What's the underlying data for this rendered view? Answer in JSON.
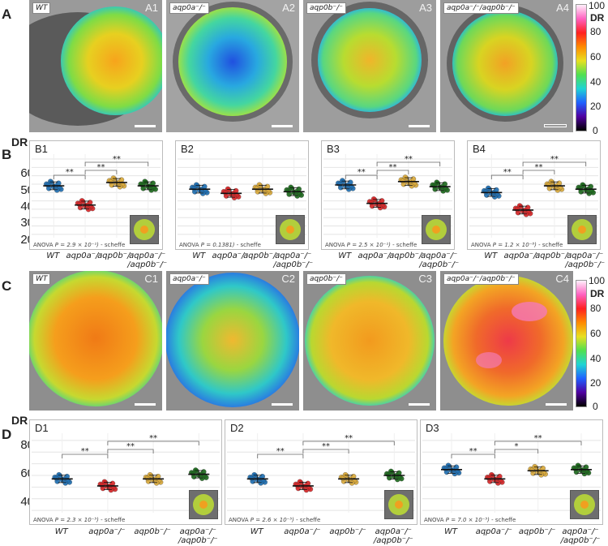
{
  "sections": {
    "A": "A",
    "B": "B",
    "C": "C",
    "D": "D"
  },
  "dr_label": "DR",
  "colorbar": {
    "ticks": [
      "100",
      "80",
      "60",
      "40",
      "20",
      "0"
    ],
    "title": "DR"
  },
  "panels_A": [
    {
      "id": "A1",
      "tag": "WT"
    },
    {
      "id": "A2",
      "tag": "aqp0a⁻/⁻"
    },
    {
      "id": "A3",
      "tag": "aqp0b⁻/⁻"
    },
    {
      "id": "A4",
      "tag": "aqp0a⁻/⁻/aqp0b⁻/⁻"
    }
  ],
  "panels_C": [
    {
      "id": "C1",
      "tag": "WT"
    },
    {
      "id": "C2",
      "tag": "aqp0a⁻/⁻"
    },
    {
      "id": "C3",
      "tag": "aqp0b⁻/⁻"
    },
    {
      "id": "C4",
      "tag": "aqp0a⁻/⁻/aqp0b⁻/⁻"
    }
  ],
  "x_groups": [
    "WT",
    "aqp0a⁻/⁻",
    "aqp0b⁻/⁻",
    "aqp0a⁻/⁻",
    "/aqp0b⁻/⁻"
  ],
  "B_yticks": [
    "60",
    "50",
    "40",
    "30",
    "20"
  ],
  "D_yticks": [
    "80",
    "60",
    "40"
  ],
  "chart_data": [
    {
      "id": "B1",
      "type": "scatter",
      "groups": [
        "WT",
        "aqp0a-/-",
        "aqp0b-/-",
        "aqp0a-/-/aqp0b-/-"
      ],
      "means": [
        49,
        37.5,
        51,
        49
      ],
      "sig": [
        "**",
        "**",
        "**"
      ],
      "anova_label": "ANOVA",
      "p_value": "P = 2.9 × 10⁻¹)",
      "method": "- scheffe",
      "ylim": [
        18,
        65
      ]
    },
    {
      "id": "B2",
      "type": "scatter",
      "groups": [
        "WT",
        "aqp0a-/-",
        "aqp0b-/-",
        "aqp0a-/-/aqp0b-/-"
      ],
      "means": [
        47,
        44.5,
        47,
        45.5
      ],
      "sig": [],
      "anova_label": "ANOVA",
      "p_value": "P = 0.1381)",
      "method": "- scheffe",
      "ylim": [
        18,
        65
      ]
    },
    {
      "id": "B3",
      "type": "scatter",
      "groups": [
        "WT",
        "aqp0a-/-",
        "aqp0b-/-",
        "aqp0a-/-/aqp0b-/-"
      ],
      "means": [
        49.5,
        38.5,
        51.5,
        48.5
      ],
      "sig": [
        "**",
        "**",
        "**"
      ],
      "anova_label": "ANOVA",
      "p_value": "P = 2.5 × 10⁻¹)",
      "method": "- scheffe",
      "ylim": [
        18,
        65
      ]
    },
    {
      "id": "B4",
      "type": "scatter",
      "groups": [
        "WT",
        "aqp0a-/-",
        "aqp0b-/-",
        "aqp0a-/-/aqp0b-/-"
      ],
      "means": [
        45,
        34.5,
        49,
        47
      ],
      "sig": [
        "**",
        "**",
        "**"
      ],
      "anova_label": "ANOVA",
      "p_value": "P = 1.2 × 10⁻⁸)",
      "method": "- scheffe",
      "ylim": [
        18,
        65
      ]
    },
    {
      "id": "D1",
      "type": "scatter",
      "groups": [
        "WT",
        "aqp0a-/-",
        "aqp0b-/-",
        "aqp0a-/-/aqp0b-/-"
      ],
      "means": [
        57,
        51,
        57,
        61
      ],
      "sig": [
        "**",
        "**",
        "**"
      ],
      "anova_label": "ANOVA",
      "p_value": "P = 2.3 × 10⁻⁵)",
      "method": "- scheffe",
      "ylim": [
        28,
        92
      ]
    },
    {
      "id": "D2",
      "type": "scatter",
      "groups": [
        "WT",
        "aqp0a-/-",
        "aqp0b-/-",
        "aqp0a-/-/aqp0b-/-"
      ],
      "means": [
        57,
        51,
        57,
        60
      ],
      "sig": [
        "**",
        "**",
        "**"
      ],
      "anova_label": "ANOVA",
      "p_value": "P = 2.6 × 10⁻⁵)",
      "method": "- scheffe",
      "ylim": [
        28,
        92
      ]
    },
    {
      "id": "D3",
      "type": "scatter",
      "groups": [
        "WT",
        "aqp0a-/-",
        "aqp0b-/-",
        "aqp0a-/-/aqp0b-/-"
      ],
      "means": [
        65,
        57,
        64,
        65
      ],
      "sig": [
        "**",
        "*",
        "**"
      ],
      "anova_label": "ANOVA",
      "p_value": "P = 7.0 × 10⁻⁵)",
      "method": "- scheffe",
      "ylim": [
        28,
        92
      ]
    }
  ],
  "colors": {
    "WT": "#1f6fb2",
    "aqp0a": "#d62728",
    "aqp0b": "#d9a93a",
    "double": "#1e6a1e"
  }
}
